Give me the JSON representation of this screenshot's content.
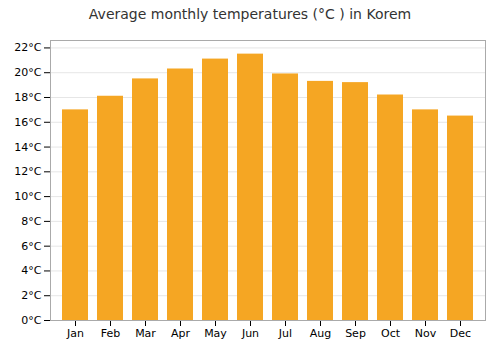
{
  "chart_data": {
    "type": "bar",
    "title": "Average monthly temperatures (°C ) in Korem",
    "categories": [
      "Jan",
      "Feb",
      "Mar",
      "Apr",
      "May",
      "Jun",
      "Jul",
      "Aug",
      "Sep",
      "Oct",
      "Nov",
      "Dec"
    ],
    "values": [
      17.0,
      18.1,
      19.5,
      20.3,
      21.1,
      21.5,
      19.9,
      19.3,
      19.2,
      18.2,
      17.0,
      16.5
    ],
    "color": "#F5A623",
    "ylim": [
      0,
      22.6
    ],
    "yticks": [
      {
        "value": 0,
        "label": "0°C"
      },
      {
        "value": 2,
        "label": "2°C"
      },
      {
        "value": 4,
        "label": "4°C"
      },
      {
        "value": 6,
        "label": "6°C"
      },
      {
        "value": 8,
        "label": "8°C"
      },
      {
        "value": 10,
        "label": "10°C"
      },
      {
        "value": 12,
        "label": "12°C"
      },
      {
        "value": 14,
        "label": "14°C"
      },
      {
        "value": 16,
        "label": "16°C"
      },
      {
        "value": 18,
        "label": "18°C"
      },
      {
        "value": 20,
        "label": "20°C"
      },
      {
        "value": 22,
        "label": "22°C"
      }
    ],
    "grid": true
  }
}
